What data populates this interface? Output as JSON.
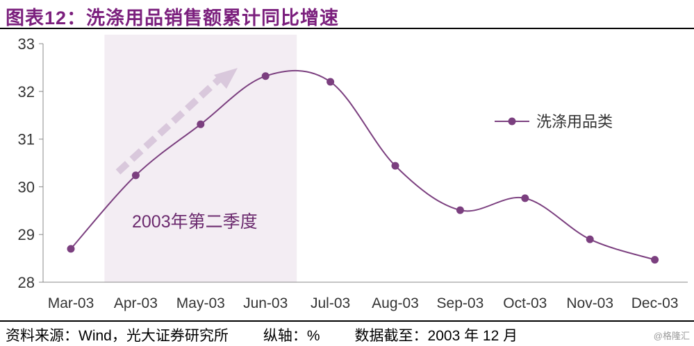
{
  "title": "图表12：洗涤用品销售额累计同比增速",
  "footer": {
    "source": "资料来源：Wind，光大证券研究所",
    "axis_unit": "纵轴：%",
    "cutoff": "数据截至：2003 年 12 月"
  },
  "watermark": "@格隆汇",
  "chart_data": {
    "type": "line",
    "title": "",
    "categories": [
      "Mar-03",
      "Apr-03",
      "May-03",
      "Jun-03",
      "Jul-03",
      "Aug-03",
      "Sep-03",
      "Oct-03",
      "Nov-03",
      "Dec-03"
    ],
    "series": [
      {
        "name": "洗涤用品类",
        "values": [
          28.7,
          30.24,
          31.31,
          32.32,
          32.2,
          30.44,
          29.51,
          29.76,
          28.9,
          28.47
        ],
        "color": "#7b3f7f"
      }
    ],
    "ylim": [
      28,
      33
    ],
    "yticks": [
      28,
      29,
      30,
      31,
      32,
      33
    ],
    "grid": false,
    "legend_position": "right",
    "smooth": true,
    "annotation": {
      "text": "2003年第二季度",
      "highlight_categories": [
        "Apr-03",
        "Jun-03"
      ],
      "highlight_color": "#f3edf3",
      "arrow_color": "#d9c8dc"
    }
  }
}
